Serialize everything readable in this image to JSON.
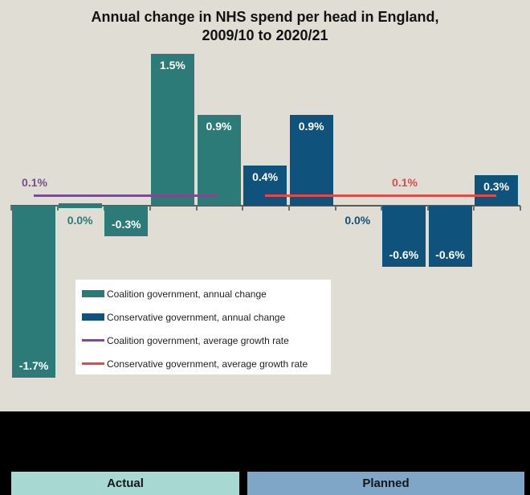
{
  "chart_data": {
    "type": "bar",
    "title": "Annual change in NHS spend per head in England, 2009/10 to 2020/21",
    "title_lines": [
      "Annual change in NHS spend per head in England,",
      "2009/10 to 2020/21"
    ],
    "ylabel": "",
    "xlabel": "",
    "ylim": [
      -1.8,
      1.6
    ],
    "grid": false,
    "tick_marks": 12,
    "bars": [
      {
        "label": "-1.7%",
        "value": -1.7,
        "group": "coalition",
        "label_pos": "inside-bottom"
      },
      {
        "label": "0.0%",
        "value": 0.0,
        "group": "coalition",
        "label_pos": "below-axis",
        "zero_stub": true
      },
      {
        "label": "-0.3%",
        "value": -0.3,
        "group": "coalition",
        "label_pos": "inside-bottom"
      },
      {
        "label": "1.5%",
        "value": 1.5,
        "group": "coalition",
        "label_pos": "inside-top"
      },
      {
        "label": "0.9%",
        "value": 0.9,
        "group": "coalition",
        "label_pos": "inside-top"
      },
      {
        "label": "0.4%",
        "value": 0.4,
        "group": "conservative",
        "label_pos": "inside-top"
      },
      {
        "label": "0.9%",
        "value": 0.9,
        "group": "conservative",
        "label_pos": "inside-top"
      },
      {
        "label": "0.0%",
        "value": 0.0,
        "group": "conservative",
        "label_pos": "below-axis"
      },
      {
        "label": "-0.6%",
        "value": -0.6,
        "group": "conservative",
        "label_pos": "inside-bottom"
      },
      {
        "label": "-0.6%",
        "value": -0.6,
        "group": "conservative",
        "label_pos": "inside-bottom"
      },
      {
        "label": "0.3%",
        "value": 0.3,
        "group": "conservative",
        "label_pos": "inside-top"
      }
    ],
    "average_lines": [
      {
        "label": "0.1%",
        "value": 0.1,
        "group": "coalition",
        "from_bar": 0,
        "to_bar": 4
      },
      {
        "label": "0.1%",
        "value": 0.1,
        "group": "conservative",
        "from_bar": 5,
        "to_bar": 10
      }
    ],
    "colors": {
      "coalition": "#2c7b78",
      "conservative": "#0f537c",
      "coalition_avg": "#7b4d8f",
      "conservative_avg": "#e24a4a",
      "background": "#e0ddd5",
      "axis": "#5a5a5b"
    }
  },
  "legend": {
    "items": [
      {
        "label": "Coalition government, annual change",
        "swatch": "bar",
        "color": "#2c7b78"
      },
      {
        "label": "Conservative government, annual change",
        "swatch": "bar",
        "color": "#0f537c"
      },
      {
        "label": "Coalition government, average growth rate",
        "swatch": "line",
        "color": "#7b4d8f"
      },
      {
        "label": "Conservative government, average growth rate",
        "swatch": "line",
        "color": "#e24a4a"
      }
    ]
  },
  "footer": {
    "bands": [
      {
        "label": "Actual",
        "color": "#a8d8d2"
      },
      {
        "label": "Planned",
        "color": "#7fa6c6"
      }
    ]
  }
}
